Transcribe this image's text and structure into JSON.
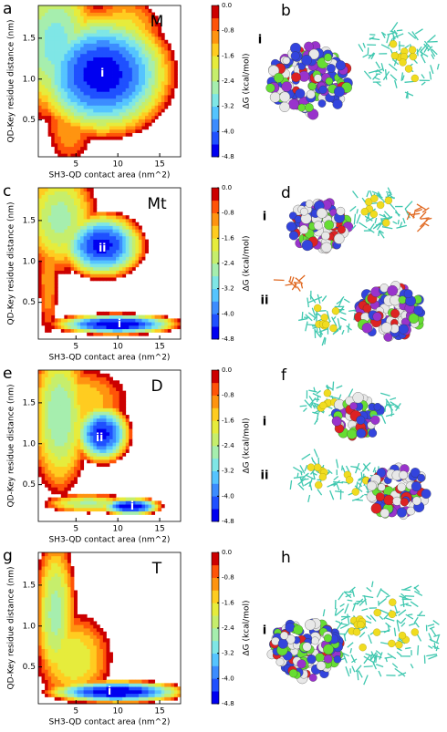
{
  "panel_labels": {
    "left": [
      "a",
      "c",
      "e",
      "g"
    ],
    "right": [
      "b",
      "d",
      "f",
      "h"
    ]
  },
  "structure_labels": [
    [
      "i"
    ],
    [
      "i",
      "ii"
    ],
    [
      "i",
      "ii"
    ],
    [
      "i"
    ]
  ],
  "chart_data": [
    {
      "type": "contour",
      "title": "M",
      "x_label": "SH3-QD contact area (nm^2)",
      "y_label": "QD-Key residue distance (nm)",
      "colorbar_label": "ΔG (kcal/mol)",
      "xlim": [
        0.5,
        17.5
      ],
      "ylim": [
        0.05,
        1.9
      ],
      "xticks": [
        5,
        10,
        15
      ],
      "yticks": [
        0.5,
        {
          "value": 1,
          "label": "1.0"
        },
        1.5
      ],
      "clim": [
        -4.8,
        0
      ],
      "cticks": [
        {
          "value": 0,
          "label": "0.0"
        },
        -0.8,
        -1.6,
        -2.4,
        -3.2,
        {
          "value": -4,
          "label": "-4.0"
        },
        -4.8
      ],
      "colors": [
        "#0000f0",
        "#1f50ff",
        "#3c8cff",
        "#55c4ff",
        "#7fe6e6",
        "#a6eeae",
        "#c6ee6c",
        "#e6ec3c",
        "#ffcc20",
        "#ff9410",
        "#ff5408",
        "#cc0000"
      ],
      "annotations": [
        "i"
      ]
    },
    {
      "type": "contour",
      "title": "Mt",
      "x_label": "SH3-QD contact area (nm^2)",
      "y_label": "QD-Key residue distance (nm)",
      "colorbar_label": "ΔG (kcal/mol)",
      "xlim": [
        0.5,
        17.5
      ],
      "ylim": [
        0.05,
        1.9
      ],
      "xticks": [
        5,
        10,
        15
      ],
      "yticks": [
        0.5,
        {
          "value": 1,
          "label": "1.0"
        },
        1.5
      ],
      "clim": [
        -4.8,
        0
      ],
      "cticks": [
        {
          "value": 0,
          "label": "0.0"
        },
        -0.8,
        -1.6,
        -2.4,
        -3.2,
        {
          "value": -4,
          "label": "-4.0"
        },
        -4.8
      ],
      "colors": [
        "#0000f0",
        "#1f50ff",
        "#3c8cff",
        "#55c4ff",
        "#7fe6e6",
        "#a6eeae",
        "#c6ee6c",
        "#e6ec3c",
        "#ffcc20",
        "#ff9410",
        "#ff5408",
        "#cc0000"
      ],
      "annotations": [
        "i",
        "ii"
      ]
    },
    {
      "type": "contour",
      "title": "D",
      "x_label": "SH3-QD contact area (nm^2)",
      "y_label": "QD-Key residue distance (nm)",
      "colorbar_label": "ΔG (kcal/mol)",
      "xlim": [
        0.5,
        17.5
      ],
      "ylim": [
        0.05,
        1.9
      ],
      "xticks": [
        5,
        10,
        15
      ],
      "yticks": [
        0.5,
        {
          "value": 1,
          "label": "1.0"
        },
        1.5
      ],
      "clim": [
        -4.8,
        0
      ],
      "cticks": [
        {
          "value": 0,
          "label": "0.0"
        },
        -0.8,
        -1.6,
        -2.4,
        -3.2,
        {
          "value": -4,
          "label": "-4.0"
        },
        -4.8
      ],
      "colors": [
        "#0000f0",
        "#1f50ff",
        "#3c8cff",
        "#55c4ff",
        "#7fe6e6",
        "#a6eeae",
        "#c6ee6c",
        "#e6ec3c",
        "#ffcc20",
        "#ff9410",
        "#ff5408",
        "#cc0000"
      ],
      "annotations": [
        "i",
        "ii"
      ]
    },
    {
      "type": "contour",
      "title": "T",
      "x_label": "SH3-QD contact area (nm^2)",
      "y_label": "QD-Key residue distance (nm)",
      "colorbar_label": "ΔG (kcal/mol)",
      "xlim": [
        0.5,
        17.5
      ],
      "ylim": [
        0.05,
        1.9
      ],
      "xticks": [
        5,
        10,
        15
      ],
      "yticks": [
        0.5,
        {
          "value": 1,
          "label": "1.0"
        },
        1.5
      ],
      "clim": [
        -4.8,
        0
      ],
      "cticks": [
        {
          "value": 0,
          "label": "0.0"
        },
        -0.8,
        -1.6,
        -2.4,
        -3.2,
        {
          "value": -4,
          "label": "-4.0"
        },
        -4.8
      ],
      "colors": [
        "#0000f0",
        "#1f50ff",
        "#3c8cff",
        "#55c4ff",
        "#7fe6e6",
        "#a6eeae",
        "#c6ee6c",
        "#e6ec3c",
        "#ffcc20",
        "#ff9410",
        "#ff5408",
        "#cc0000"
      ],
      "annotations": [
        "i"
      ]
    }
  ]
}
